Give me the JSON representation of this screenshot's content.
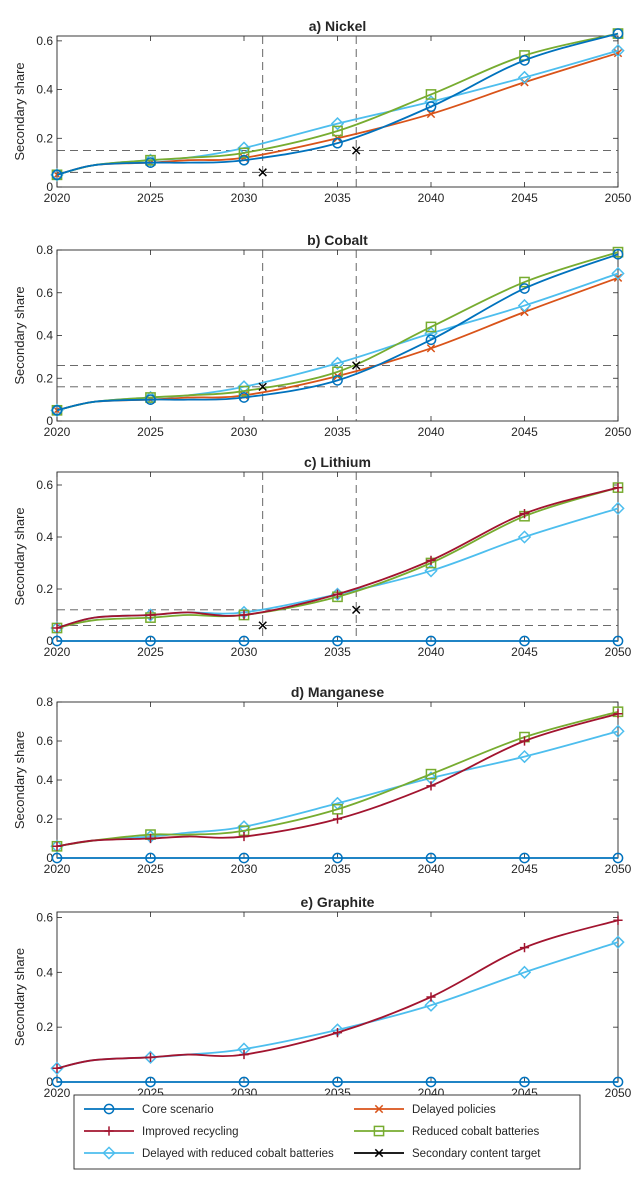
{
  "series_styles": [
    {
      "name": "Core scenario",
      "color": "#0072BD",
      "marker": "circle"
    },
    {
      "name": "Delayed policies",
      "color": "#D95319",
      "marker": "x"
    },
    {
      "name": "Improved recycling",
      "color": "#A2142F",
      "marker": "plus"
    },
    {
      "name": "Reduced cobalt batteries",
      "color": "#77AC30",
      "marker": "square"
    },
    {
      "name": "Delayed with reduced cobalt batteries",
      "color": "#4DBEEE",
      "marker": "diamond"
    },
    {
      "name": "Secondary content target",
      "color": "#000000",
      "marker": "cross"
    }
  ],
  "chart_data": [
    {
      "type": "line",
      "title": "a) Nickel",
      "xlabel": "",
      "ylabel": "Secondary share",
      "xlim": [
        2020,
        2050
      ],
      "ylim": [
        0,
        0.62
      ],
      "xticks": [
        2020,
        2025,
        2030,
        2035,
        2040,
        2045,
        2050
      ],
      "yticks": [
        0,
        0.2,
        0.4,
        0.6
      ],
      "ytick_labels": [
        "0",
        "0.2",
        "0.4",
        "0.6"
      ],
      "x": [
        2020,
        2022,
        2025,
        2027,
        2030,
        2035,
        2040,
        2045,
        2050
      ],
      "series": [
        {
          "name": "Delayed policies",
          "values": [
            0.05,
            0.09,
            0.1,
            0.11,
            0.12,
            0.2,
            0.3,
            0.43,
            0.55
          ]
        },
        {
          "name": "Delayed with reduced cobalt batteries",
          "values": [
            0.05,
            0.09,
            0.11,
            0.12,
            0.16,
            0.26,
            0.35,
            0.45,
            0.56
          ]
        },
        {
          "name": "Reduced cobalt batteries",
          "values": [
            0.05,
            0.09,
            0.11,
            0.12,
            0.14,
            0.23,
            0.38,
            0.54,
            0.63
          ]
        },
        {
          "name": "Core scenario",
          "values": [
            0.05,
            0.09,
            0.1,
            0.1,
            0.11,
            0.18,
            0.33,
            0.52,
            0.63
          ]
        }
      ],
      "target": {
        "x": [
          2031,
          2036
        ],
        "y": [
          0.06,
          0.15
        ]
      }
    },
    {
      "type": "line",
      "title": "b) Cobalt",
      "xlabel": "",
      "ylabel": "Secondary share",
      "xlim": [
        2020,
        2050
      ],
      "ylim": [
        0,
        0.8
      ],
      "xticks": [
        2020,
        2025,
        2030,
        2035,
        2040,
        2045,
        2050
      ],
      "yticks": [
        0,
        0.2,
        0.4,
        0.6,
        0.8
      ],
      "ytick_labels": [
        "0",
        "0.2",
        "0.4",
        "0.6",
        "0.8"
      ],
      "x": [
        2020,
        2022,
        2025,
        2027,
        2030,
        2035,
        2040,
        2045,
        2050
      ],
      "series": [
        {
          "name": "Delayed policies",
          "values": [
            0.05,
            0.09,
            0.1,
            0.11,
            0.12,
            0.21,
            0.34,
            0.51,
            0.67
          ]
        },
        {
          "name": "Delayed with reduced cobalt batteries",
          "values": [
            0.05,
            0.09,
            0.11,
            0.12,
            0.16,
            0.27,
            0.41,
            0.54,
            0.69
          ]
        },
        {
          "name": "Reduced cobalt batteries",
          "values": [
            0.05,
            0.09,
            0.11,
            0.12,
            0.14,
            0.23,
            0.44,
            0.65,
            0.79
          ]
        },
        {
          "name": "Core scenario",
          "values": [
            0.05,
            0.09,
            0.1,
            0.1,
            0.11,
            0.19,
            0.38,
            0.62,
            0.78
          ]
        }
      ],
      "target": {
        "x": [
          2031,
          2036
        ],
        "y": [
          0.16,
          0.26
        ]
      }
    },
    {
      "type": "line",
      "title": "c) Lithium",
      "xlabel": "",
      "ylabel": "Secondary share",
      "xlim": [
        2020,
        2050
      ],
      "ylim": [
        0,
        0.65
      ],
      "xticks": [
        2020,
        2025,
        2030,
        2035,
        2040,
        2045,
        2050
      ],
      "yticks": [
        0,
        0.2,
        0.4,
        0.6
      ],
      "ytick_labels": [
        "0",
        "0.2",
        "0.4",
        "0.6"
      ],
      "x": [
        2020,
        2022,
        2025,
        2027,
        2030,
        2035,
        2040,
        2045,
        2050
      ],
      "series": [
        {
          "name": "Delayed with reduced cobalt batteries",
          "values": [
            0.05,
            0.09,
            0.1,
            0.11,
            0.11,
            0.18,
            0.27,
            0.4,
            0.51
          ]
        },
        {
          "name": "Reduced cobalt batteries",
          "values": [
            0.05,
            0.08,
            0.09,
            0.1,
            0.1,
            0.17,
            0.3,
            0.48,
            0.59
          ]
        },
        {
          "name": "Improved recycling",
          "values": [
            0.05,
            0.09,
            0.1,
            0.11,
            0.1,
            0.18,
            0.31,
            0.49,
            0.59
          ]
        },
        {
          "name": "Core scenario",
          "values": [
            0,
            0,
            0,
            0,
            0,
            0,
            0,
            0,
            0
          ]
        }
      ],
      "target": {
        "x": [
          2031,
          2036
        ],
        "y": [
          0.06,
          0.12
        ]
      }
    },
    {
      "type": "line",
      "title": "d) Manganese",
      "xlabel": "",
      "ylabel": "Secondary share",
      "xlim": [
        2020,
        2050
      ],
      "ylim": [
        0,
        0.8
      ],
      "xticks": [
        2020,
        2025,
        2030,
        2035,
        2040,
        2045,
        2050
      ],
      "yticks": [
        0,
        0.2,
        0.4,
        0.6,
        0.8
      ],
      "ytick_labels": [
        "0",
        "0.2",
        "0.4",
        "0.6",
        "0.8"
      ],
      "x": [
        2020,
        2022,
        2025,
        2027,
        2030,
        2035,
        2040,
        2045,
        2050
      ],
      "series": [
        {
          "name": "Delayed with reduced cobalt batteries",
          "values": [
            0.06,
            0.09,
            0.11,
            0.13,
            0.16,
            0.28,
            0.41,
            0.52,
            0.65
          ]
        },
        {
          "name": "Reduced cobalt batteries",
          "values": [
            0.06,
            0.09,
            0.12,
            0.12,
            0.14,
            0.25,
            0.43,
            0.62,
            0.75
          ]
        },
        {
          "name": "Improved recycling",
          "values": [
            0.06,
            0.09,
            0.1,
            0.11,
            0.11,
            0.2,
            0.37,
            0.6,
            0.74
          ]
        },
        {
          "name": "Core scenario",
          "values": [
            0,
            0,
            0,
            0,
            0,
            0,
            0,
            0,
            0
          ]
        }
      ]
    },
    {
      "type": "line",
      "title": "e) Graphite",
      "xlabel": "",
      "ylabel": "Secondary share",
      "xlim": [
        2020,
        2050
      ],
      "ylim": [
        0,
        0.62
      ],
      "xticks": [
        2020,
        2025,
        2030,
        2035,
        2040,
        2045,
        2050
      ],
      "yticks": [
        0,
        0.2,
        0.4,
        0.6
      ],
      "ytick_labels": [
        "0",
        "0.2",
        "0.4",
        "0.6"
      ],
      "x": [
        2020,
        2022,
        2025,
        2027,
        2030,
        2035,
        2040,
        2045,
        2050
      ],
      "series": [
        {
          "name": "Delayed with reduced cobalt batteries",
          "values": [
            0.05,
            0.08,
            0.09,
            0.1,
            0.12,
            0.19,
            0.28,
            0.4,
            0.51
          ]
        },
        {
          "name": "Improved recycling",
          "values": [
            0.05,
            0.08,
            0.09,
            0.1,
            0.1,
            0.18,
            0.31,
            0.49,
            0.59
          ]
        },
        {
          "name": "Core scenario",
          "values": [
            0,
            0,
            0,
            0,
            0,
            0,
            0,
            0,
            0
          ]
        }
      ]
    }
  ],
  "legend": {
    "position": "bottom",
    "columns": 2,
    "entries": [
      "Core scenario",
      "Delayed policies",
      "Improved recycling",
      "Reduced cobalt batteries",
      "Delayed with reduced cobalt batteries",
      "Secondary content target"
    ]
  }
}
